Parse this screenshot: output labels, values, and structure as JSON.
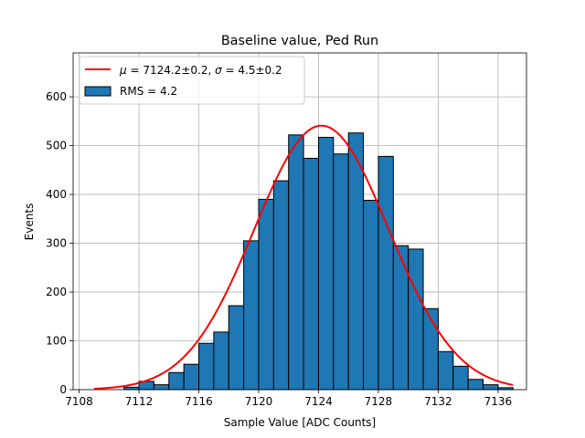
{
  "chart_data": {
    "type": "bar",
    "title": "Baseline value, Ped Run",
    "xlabel": "Sample Value [ADC Counts]",
    "ylabel": "Events",
    "xlim": [
      7107.6,
      7137.9
    ],
    "ylim": [
      0,
      690
    ],
    "xticks": [
      7108,
      7112,
      7116,
      7120,
      7124,
      7128,
      7132,
      7136
    ],
    "yticks": [
      0,
      100,
      200,
      300,
      400,
      500,
      600
    ],
    "grid": true,
    "legend_position": "top-left",
    "histogram": {
      "name": "RMS = 4.2",
      "color": "#1f77b4",
      "edgecolor": "#000000",
      "bin_edges": [
        7111,
        7112,
        7113,
        7114,
        7115,
        7116,
        7117,
        7118,
        7119,
        7120,
        7121,
        7122,
        7123,
        7124,
        7125,
        7126,
        7127,
        7128,
        7129,
        7130,
        7131,
        7132,
        7133,
        7134,
        7135,
        7136,
        7137
      ],
      "counts": [
        5,
        17,
        10,
        35,
        52,
        95,
        118,
        172,
        305,
        390,
        428,
        522,
        474,
        517,
        483,
        526,
        388,
        478,
        295,
        288,
        166,
        78,
        48,
        21,
        10,
        4
      ]
    },
    "fit": {
      "name_prefix": "μ = ",
      "name_middle": "7124.2±0.2, ",
      "name_sigma": "σ = ",
      "name_suffix": "4.5±0.2",
      "color": "#ff0000",
      "x_range": [
        7109,
        7137
      ],
      "mu": 7124.2,
      "sigma": 4.5,
      "amplitude": 541
    }
  }
}
